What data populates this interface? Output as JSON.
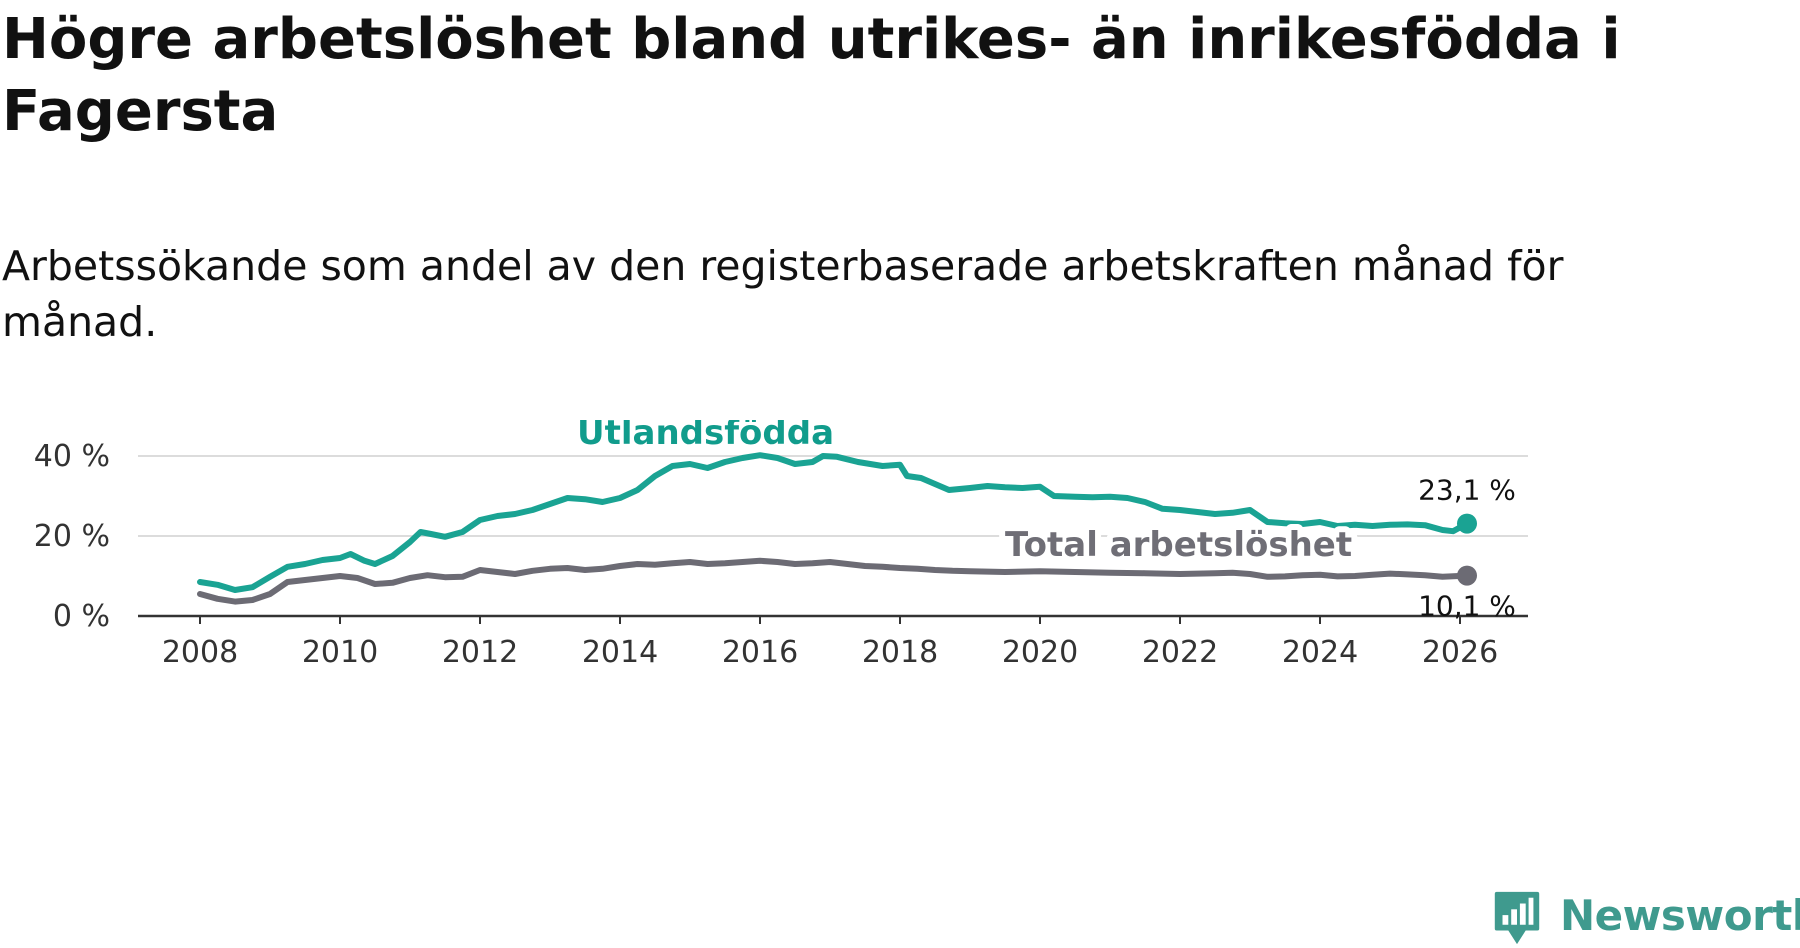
{
  "title": "Högre arbetslöshet bland utrikes- än inrikesfödda i Fagersta",
  "subtitle": "Arbetssökande som andel av den registerbaserade arbetskraften månad för månad.",
  "brand": {
    "name": "Newsworthy",
    "icon": "newsworthy-logo-icon",
    "color": "#3f9a8e"
  },
  "chart_data": {
    "type": "line",
    "title": "Högre arbetslöshet bland utrikes- än inrikesfödda i Fagersta",
    "subtitle": "Arbetssökande som andel av den registerbaserade arbetskraften månad för månad.",
    "xlabel": "",
    "ylabel": "",
    "xlim": [
      2007.1,
      2026.6
    ],
    "ylim": [
      0,
      40
    ],
    "x_ticks": [
      "2008",
      "2010",
      "2012",
      "2014",
      "2016",
      "2018",
      "2020",
      "2022",
      "2024",
      "2026"
    ],
    "y_ticks": [
      "0 %",
      "20 %",
      "40 %"
    ],
    "grid": true,
    "legend": "inline labels",
    "series": [
      {
        "name": "Utlandsfödda",
        "color": "#1aa393",
        "label_color": "#119c8c",
        "end_label": "23,1 %",
        "points": [
          [
            2008.0,
            8.5
          ],
          [
            2008.25,
            7.8
          ],
          [
            2008.5,
            6.5
          ],
          [
            2008.75,
            7.2
          ],
          [
            2009.0,
            9.8
          ],
          [
            2009.25,
            12.3
          ],
          [
            2009.5,
            13.0
          ],
          [
            2009.75,
            14.0
          ],
          [
            2010.0,
            14.5
          ],
          [
            2010.15,
            15.5
          ],
          [
            2010.35,
            13.8
          ],
          [
            2010.5,
            13.0
          ],
          [
            2010.75,
            15.0
          ],
          [
            2011.0,
            18.5
          ],
          [
            2011.15,
            21.0
          ],
          [
            2011.3,
            20.5
          ],
          [
            2011.5,
            19.8
          ],
          [
            2011.75,
            21.0
          ],
          [
            2012.0,
            24.0
          ],
          [
            2012.25,
            25.0
          ],
          [
            2012.5,
            25.5
          ],
          [
            2012.75,
            26.5
          ],
          [
            2013.0,
            28.0
          ],
          [
            2013.25,
            29.5
          ],
          [
            2013.5,
            29.2
          ],
          [
            2013.75,
            28.5
          ],
          [
            2014.0,
            29.5
          ],
          [
            2014.25,
            31.5
          ],
          [
            2014.5,
            35.0
          ],
          [
            2014.75,
            37.5
          ],
          [
            2015.0,
            38.0
          ],
          [
            2015.25,
            37.0
          ],
          [
            2015.5,
            38.5
          ],
          [
            2015.75,
            39.5
          ],
          [
            2016.0,
            40.2
          ],
          [
            2016.25,
            39.5
          ],
          [
            2016.5,
            38.0
          ],
          [
            2016.75,
            38.5
          ],
          [
            2016.9,
            40.0
          ],
          [
            2017.1,
            39.8
          ],
          [
            2017.4,
            38.5
          ],
          [
            2017.75,
            37.5
          ],
          [
            2018.0,
            37.8
          ],
          [
            2018.1,
            35.0
          ],
          [
            2018.3,
            34.5
          ],
          [
            2018.5,
            33.0
          ],
          [
            2018.7,
            31.5
          ],
          [
            2019.0,
            32.0
          ],
          [
            2019.25,
            32.5
          ],
          [
            2019.5,
            32.2
          ],
          [
            2019.75,
            32.0
          ],
          [
            2020.0,
            32.3
          ],
          [
            2020.2,
            30.0
          ],
          [
            2020.5,
            29.8
          ],
          [
            2020.75,
            29.7
          ],
          [
            2021.0,
            29.8
          ],
          [
            2021.25,
            29.5
          ],
          [
            2021.5,
            28.5
          ],
          [
            2021.75,
            26.8
          ],
          [
            2022.0,
            26.5
          ],
          [
            2022.25,
            26.0
          ],
          [
            2022.5,
            25.5
          ],
          [
            2022.75,
            25.8
          ],
          [
            2023.0,
            26.5
          ],
          [
            2023.25,
            23.5
          ],
          [
            2023.5,
            23.2
          ],
          [
            2023.75,
            23.0
          ],
          [
            2024.0,
            23.5
          ],
          [
            2024.25,
            22.5
          ],
          [
            2024.5,
            22.8
          ],
          [
            2024.75,
            22.5
          ],
          [
            2025.0,
            22.8
          ],
          [
            2025.25,
            22.9
          ],
          [
            2025.5,
            22.7
          ],
          [
            2025.75,
            21.5
          ],
          [
            2025.9,
            21.2
          ],
          [
            2026.1,
            23.1
          ]
        ]
      },
      {
        "name": "Total arbetslöshet",
        "color": "#6c6b74",
        "label_color": "#6f6e76",
        "end_label": "10,1 %",
        "points": [
          [
            2008.0,
            5.5
          ],
          [
            2008.25,
            4.3
          ],
          [
            2008.5,
            3.6
          ],
          [
            2008.75,
            4.0
          ],
          [
            2009.0,
            5.5
          ],
          [
            2009.25,
            8.5
          ],
          [
            2009.5,
            9.0
          ],
          [
            2009.75,
            9.5
          ],
          [
            2010.0,
            10.0
          ],
          [
            2010.25,
            9.5
          ],
          [
            2010.5,
            8.0
          ],
          [
            2010.75,
            8.3
          ],
          [
            2011.0,
            9.5
          ],
          [
            2011.25,
            10.2
          ],
          [
            2011.5,
            9.7
          ],
          [
            2011.75,
            9.8
          ],
          [
            2012.0,
            11.5
          ],
          [
            2012.25,
            11.0
          ],
          [
            2012.5,
            10.5
          ],
          [
            2012.75,
            11.3
          ],
          [
            2013.0,
            11.8
          ],
          [
            2013.25,
            12.0
          ],
          [
            2013.5,
            11.5
          ],
          [
            2013.75,
            11.8
          ],
          [
            2014.0,
            12.5
          ],
          [
            2014.25,
            13.0
          ],
          [
            2014.5,
            12.8
          ],
          [
            2014.75,
            13.2
          ],
          [
            2015.0,
            13.5
          ],
          [
            2015.25,
            13.0
          ],
          [
            2015.5,
            13.2
          ],
          [
            2015.75,
            13.5
          ],
          [
            2016.0,
            13.8
          ],
          [
            2016.25,
            13.5
          ],
          [
            2016.5,
            13.0
          ],
          [
            2016.75,
            13.2
          ],
          [
            2017.0,
            13.5
          ],
          [
            2017.25,
            13.0
          ],
          [
            2017.5,
            12.5
          ],
          [
            2017.75,
            12.3
          ],
          [
            2018.0,
            12.0
          ],
          [
            2018.25,
            11.8
          ],
          [
            2018.5,
            11.5
          ],
          [
            2018.75,
            11.3
          ],
          [
            2019.0,
            11.2
          ],
          [
            2019.5,
            11.0
          ],
          [
            2020.0,
            11.2
          ],
          [
            2020.5,
            11.0
          ],
          [
            2021.0,
            10.8
          ],
          [
            2021.5,
            10.7
          ],
          [
            2022.0,
            10.5
          ],
          [
            2022.5,
            10.7
          ],
          [
            2022.75,
            10.8
          ],
          [
            2023.0,
            10.5
          ],
          [
            2023.25,
            9.8
          ],
          [
            2023.5,
            9.9
          ],
          [
            2023.75,
            10.2
          ],
          [
            2024.0,
            10.3
          ],
          [
            2024.25,
            9.9
          ],
          [
            2024.5,
            10.0
          ],
          [
            2024.75,
            10.3
          ],
          [
            2025.0,
            10.6
          ],
          [
            2025.25,
            10.4
          ],
          [
            2025.5,
            10.2
          ],
          [
            2025.75,
            9.8
          ],
          [
            2026.1,
            10.1
          ]
        ]
      }
    ]
  }
}
